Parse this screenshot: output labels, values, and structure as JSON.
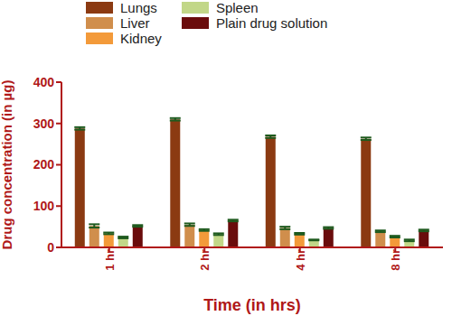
{
  "chart_data": {
    "type": "bar",
    "x_label": "Time (in hrs)",
    "y_label": "Drug concentration (in µg)",
    "categories": [
      "1 hr",
      "2 hr",
      "4 hr",
      "8 hr"
    ],
    "series": [
      {
        "name": "Lungs",
        "color": "#8b3a12",
        "values": [
          288,
          310,
          268,
          263
        ],
        "errors": [
          3,
          3,
          3,
          3
        ]
      },
      {
        "name": "Liver",
        "color": "#d08e4c",
        "values": [
          52,
          55,
          47,
          39
        ],
        "errors": [
          4,
          3,
          3,
          2
        ]
      },
      {
        "name": "Kidney",
        "color": "#f39a3a",
        "values": [
          34,
          42,
          33,
          26
        ],
        "errors": [
          2,
          2,
          2,
          2
        ]
      },
      {
        "name": "Spleen",
        "color": "#c2d788",
        "values": [
          24,
          32,
          18,
          17
        ],
        "errors": [
          2,
          2,
          1,
          2
        ]
      },
      {
        "name": "Plain drug solution",
        "color": "#6a0c0c",
        "values": [
          52,
          65,
          47,
          41
        ],
        "errors": [
          2,
          2,
          2,
          2
        ]
      }
    ],
    "ylim": [
      0,
      400
    ],
    "yticks": [
      0,
      100,
      200,
      300,
      400
    ],
    "grid": false,
    "legend": "upper left"
  }
}
